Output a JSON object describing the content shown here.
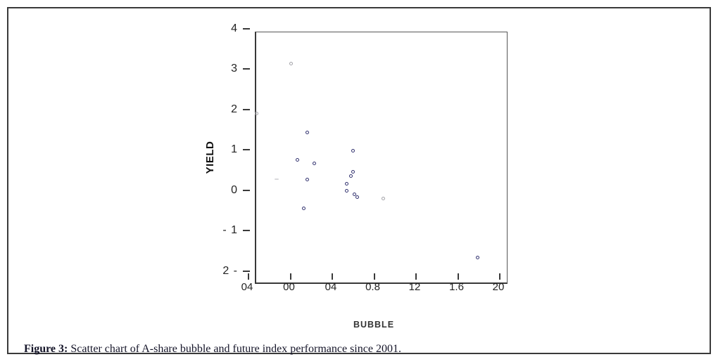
{
  "figure": {
    "caption_label": "Figure 3:",
    "caption_text": " Scatter chart of A-share bubble and future index performance since 2001."
  },
  "chart_data": {
    "type": "scatter",
    "title": "",
    "xlabel": "BUBBLE",
    "ylabel": "YIELD",
    "xlim": [
      -0.4,
      2.0
    ],
    "ylim": [
      -2.13,
      4.08
    ],
    "grid": false,
    "legend": false,
    "x_ticks": [
      {
        "value": -0.4,
        "label": "04"
      },
      {
        "value": 0.0,
        "label": "00"
      },
      {
        "value": 0.4,
        "label": "04"
      },
      {
        "value": 0.8,
        "label": "0.8"
      },
      {
        "value": 1.2,
        "label": "12"
      },
      {
        "value": 1.6,
        "label": "1.6"
      },
      {
        "value": 2.0,
        "label": "20"
      }
    ],
    "y_ticks": [
      {
        "value": 4,
        "label": "4"
      },
      {
        "value": 3,
        "label": "3"
      },
      {
        "value": 2,
        "label": "2"
      },
      {
        "value": 1,
        "label": "1"
      },
      {
        "value": 0,
        "label": "0"
      },
      {
        "value": -1,
        "label": "- 1"
      },
      {
        "value": -2,
        "label": "2 -"
      }
    ],
    "series": [
      {
        "name": "dark-points",
        "color": "#333370",
        "points": [
          [
            0.16,
            1.42
          ],
          [
            0.07,
            0.75
          ],
          [
            0.23,
            0.66
          ],
          [
            0.16,
            0.26
          ],
          [
            0.13,
            -0.46
          ],
          [
            0.6,
            0.98
          ],
          [
            0.6,
            0.45
          ],
          [
            0.58,
            0.35
          ],
          [
            0.54,
            0.15
          ],
          [
            0.54,
            -0.01
          ],
          [
            0.61,
            -0.1
          ],
          [
            0.64,
            -0.18
          ],
          [
            1.79,
            -1.67
          ]
        ]
      },
      {
        "name": "light-points",
        "color": "#a3a3a8",
        "points": [
          [
            -0.32,
            1.9
          ],
          [
            0.01,
            3.13
          ],
          [
            0.89,
            -0.2
          ]
        ]
      }
    ],
    "faint_artifact_point": {
      "x": -0.13,
      "y": 0.27
    }
  }
}
